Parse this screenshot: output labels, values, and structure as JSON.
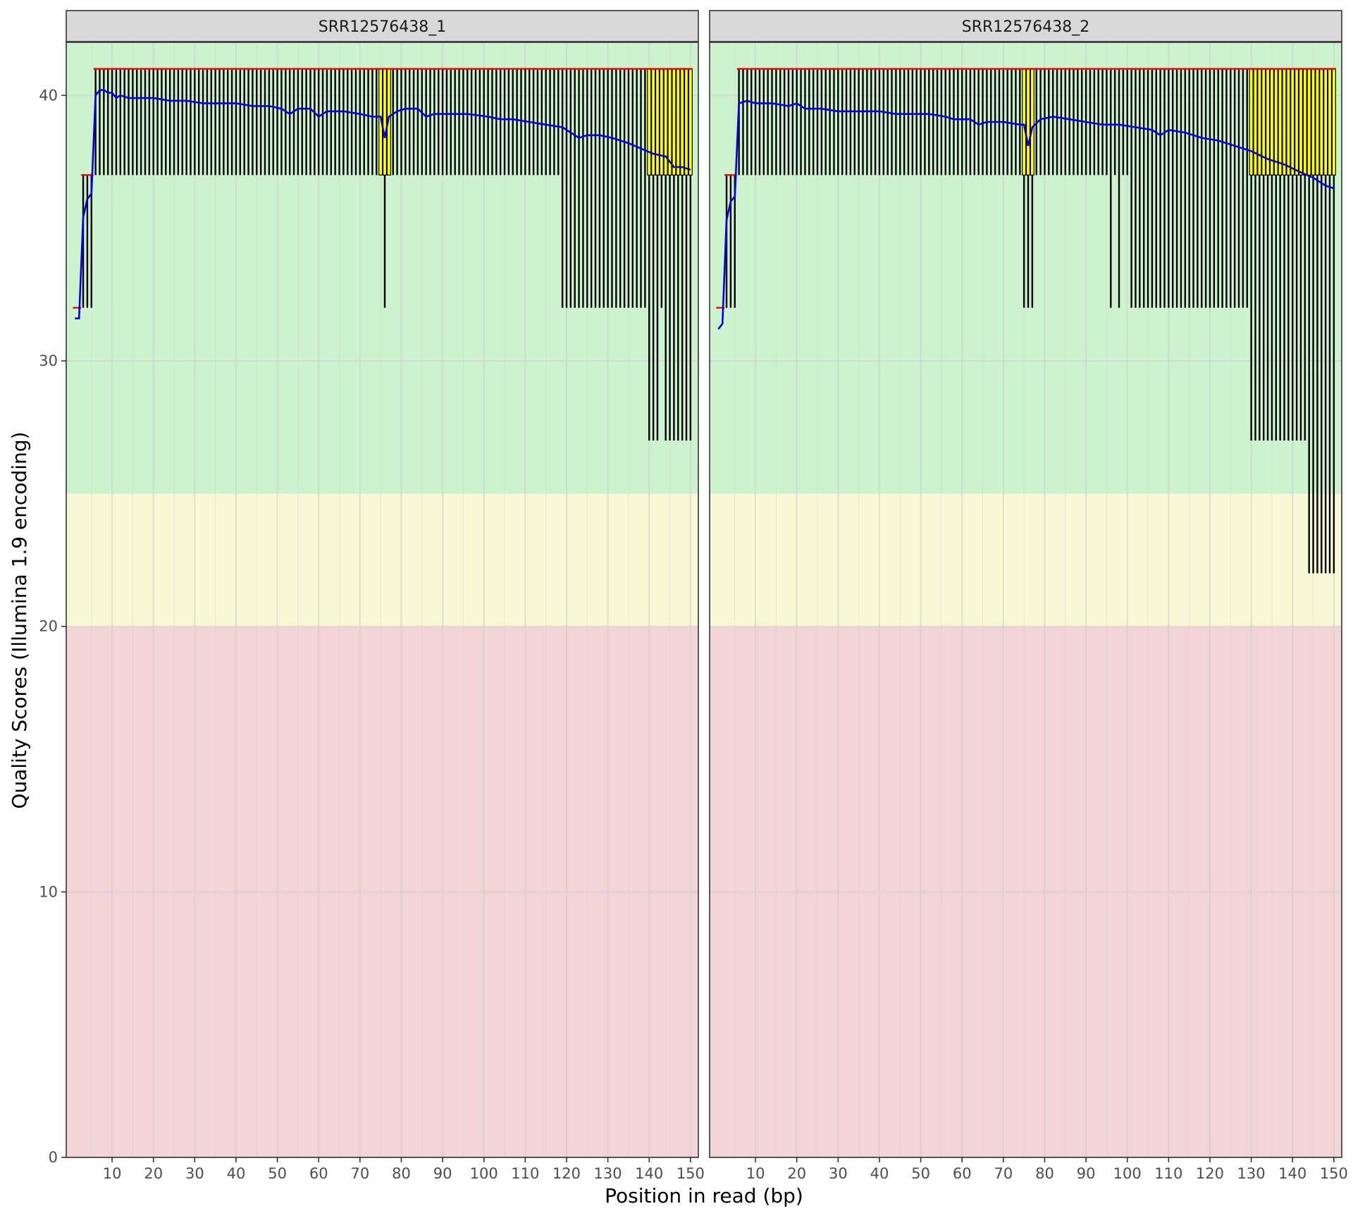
{
  "chart_data": {
    "type": "box",
    "xlabel": "Position in read (bp)",
    "ylabel": "Quality Scores (Illumina 1.9 encoding)",
    "xlim": [
      0,
      151
    ],
    "ylim": [
      0,
      42
    ],
    "x_ticks": [
      10,
      20,
      30,
      40,
      50,
      60,
      70,
      80,
      90,
      100,
      110,
      120,
      130,
      140,
      150
    ],
    "y_ticks": [
      0,
      10,
      20,
      30,
      40
    ],
    "grid": true,
    "legend": "none",
    "quality_bands": [
      {
        "from": 0,
        "to": 20,
        "color": "#f3d4d7"
      },
      {
        "from": 20,
        "to": 25,
        "color": "#f8f8d7"
      },
      {
        "from": 25,
        "to": 42,
        "color": "#ccf3cd"
      }
    ],
    "colors": {
      "mean_line": "#0000ee",
      "median_mark": "#ee0000",
      "box_fill": "#ffff00",
      "whisker": "#000000",
      "panel_border": "#333333",
      "strip_fill": "#d9d9d9",
      "gridline": "#cfcfcf"
    },
    "panels": [
      {
        "strip_label": "SRR12576438_1",
        "mean_points": [
          [
            1,
            31.6
          ],
          [
            2,
            31.6
          ],
          [
            3,
            35.4
          ],
          [
            4,
            36.1
          ],
          [
            5,
            36.3
          ],
          [
            6,
            40.0
          ],
          [
            7,
            40.2
          ],
          [
            8,
            40.2
          ],
          [
            9,
            40.1
          ],
          [
            10,
            40.1
          ],
          [
            11,
            39.9
          ],
          [
            12,
            40.0
          ],
          [
            14,
            39.9
          ],
          [
            16,
            39.9
          ],
          [
            20,
            39.9
          ],
          [
            24,
            39.8
          ],
          [
            28,
            39.8
          ],
          [
            32,
            39.7
          ],
          [
            36,
            39.7
          ],
          [
            40,
            39.7
          ],
          [
            44,
            39.6
          ],
          [
            48,
            39.6
          ],
          [
            51,
            39.5
          ],
          [
            53,
            39.3
          ],
          [
            55,
            39.5
          ],
          [
            58,
            39.5
          ],
          [
            60,
            39.2
          ],
          [
            62,
            39.4
          ],
          [
            66,
            39.4
          ],
          [
            70,
            39.3
          ],
          [
            73,
            39.2
          ],
          [
            75,
            39.2
          ],
          [
            76,
            38.4
          ],
          [
            77,
            39.2
          ],
          [
            79,
            39.4
          ],
          [
            81,
            39.5
          ],
          [
            84,
            39.5
          ],
          [
            86,
            39.2
          ],
          [
            88,
            39.3
          ],
          [
            92,
            39.3
          ],
          [
            96,
            39.3
          ],
          [
            101,
            39.2
          ],
          [
            104,
            39.1
          ],
          [
            107,
            39.1
          ],
          [
            111,
            39.0
          ],
          [
            115,
            38.9
          ],
          [
            119,
            38.8
          ],
          [
            121,
            38.6
          ],
          [
            123,
            38.4
          ],
          [
            125,
            38.5
          ],
          [
            128,
            38.5
          ],
          [
            131,
            38.4
          ],
          [
            135,
            38.2
          ],
          [
            138,
            38.0
          ],
          [
            141,
            37.8
          ],
          [
            144,
            37.7
          ],
          [
            146,
            37.3
          ],
          [
            148,
            37.3
          ],
          [
            150,
            37.2
          ]
        ],
        "boxes": [
          {
            "from": 1,
            "to": 2,
            "low": 32,
            "q1": 32,
            "median": 32,
            "q3": 32,
            "high": 32
          },
          {
            "from": 3,
            "to": 5,
            "low": 32,
            "q1": 37,
            "median": 37,
            "q3": 37,
            "high": 37
          },
          {
            "from": 6,
            "to": 7,
            "low": 37,
            "q1": 41,
            "median": 41,
            "q3": 41,
            "high": 41
          },
          {
            "from": 8,
            "to": 75,
            "low": 37,
            "q1": 41,
            "median": 41,
            "q3": 41,
            "high": 41
          },
          {
            "from": 75,
            "to": 77,
            "low": 37,
            "q1": 37,
            "median": 41,
            "q3": 41,
            "high": 41
          },
          {
            "from": 76,
            "to": 76,
            "low": 32,
            "q1": 37,
            "median": 41,
            "q3": 41,
            "high": 41
          },
          {
            "from": 78,
            "to": 118,
            "low": 37,
            "q1": 41,
            "median": 41,
            "q3": 41,
            "high": 41
          },
          {
            "from": 119,
            "to": 139,
            "low": 32,
            "q1": 41,
            "median": 41,
            "q3": 41,
            "high": 41
          },
          {
            "from": 140,
            "to": 142,
            "low": 27,
            "q1": 37,
            "median": 41,
            "q3": 41,
            "high": 41
          },
          {
            "from": 143,
            "to": 143,
            "low": 32,
            "q1": 37,
            "median": 41,
            "q3": 41,
            "high": 41
          },
          {
            "from": 144,
            "to": 150,
            "low": 27,
            "q1": 37,
            "median": 41,
            "q3": 41,
            "high": 41
          }
        ]
      },
      {
        "strip_label": "SRR12576438_2",
        "mean_points": [
          [
            1,
            31.2
          ],
          [
            2,
            31.4
          ],
          [
            3,
            35.3
          ],
          [
            4,
            36.0
          ],
          [
            5,
            36.2
          ],
          [
            6,
            39.7
          ],
          [
            8,
            39.8
          ],
          [
            10,
            39.7
          ],
          [
            14,
            39.7
          ],
          [
            18,
            39.6
          ],
          [
            20,
            39.7
          ],
          [
            22,
            39.5
          ],
          [
            26,
            39.5
          ],
          [
            30,
            39.4
          ],
          [
            35,
            39.4
          ],
          [
            40,
            39.4
          ],
          [
            44,
            39.3
          ],
          [
            48,
            39.3
          ],
          [
            52,
            39.3
          ],
          [
            56,
            39.2
          ],
          [
            58,
            39.1
          ],
          [
            62,
            39.1
          ],
          [
            64,
            38.9
          ],
          [
            66,
            39.0
          ],
          [
            70,
            39.0
          ],
          [
            74,
            38.9
          ],
          [
            75,
            38.9
          ],
          [
            76,
            38.1
          ],
          [
            77,
            38.8
          ],
          [
            79,
            39.1
          ],
          [
            82,
            39.2
          ],
          [
            86,
            39.1
          ],
          [
            90,
            39.0
          ],
          [
            94,
            38.9
          ],
          [
            98,
            38.9
          ],
          [
            102,
            38.8
          ],
          [
            106,
            38.7
          ],
          [
            108,
            38.5
          ],
          [
            110,
            38.7
          ],
          [
            114,
            38.6
          ],
          [
            118,
            38.4
          ],
          [
            122,
            38.3
          ],
          [
            126,
            38.1
          ],
          [
            130,
            37.9
          ],
          [
            134,
            37.6
          ],
          [
            138,
            37.4
          ],
          [
            142,
            37.1
          ],
          [
            145,
            36.9
          ],
          [
            148,
            36.6
          ],
          [
            150,
            36.5
          ]
        ],
        "boxes": [
          {
            "from": 1,
            "to": 2,
            "low": 32,
            "q1": 32,
            "median": 32,
            "q3": 32,
            "high": 32
          },
          {
            "from": 3,
            "to": 5,
            "low": 32,
            "q1": 37,
            "median": 37,
            "q3": 37,
            "high": 37
          },
          {
            "from": 6,
            "to": 74,
            "low": 37,
            "q1": 41,
            "median": 41,
            "q3": 41,
            "high": 41
          },
          {
            "from": 75,
            "to": 77,
            "low": 32,
            "q1": 37,
            "median": 41,
            "q3": 41,
            "high": 41
          },
          {
            "from": 78,
            "to": 95,
            "low": 37,
            "q1": 41,
            "median": 41,
            "q3": 41,
            "high": 41
          },
          {
            "from": 96,
            "to": 96,
            "low": 32,
            "q1": 41,
            "median": 41,
            "q3": 41,
            "high": 41
          },
          {
            "from": 97,
            "to": 97,
            "low": 37,
            "q1": 41,
            "median": 41,
            "q3": 41,
            "high": 41
          },
          {
            "from": 98,
            "to": 98,
            "low": 32,
            "q1": 41,
            "median": 41,
            "q3": 41,
            "high": 41
          },
          {
            "from": 99,
            "to": 100,
            "low": 37,
            "q1": 41,
            "median": 41,
            "q3": 41,
            "high": 41
          },
          {
            "from": 101,
            "to": 129,
            "low": 32,
            "q1": 41,
            "median": 41,
            "q3": 41,
            "high": 41
          },
          {
            "from": 130,
            "to": 143,
            "low": 27,
            "q1": 37,
            "median": 41,
            "q3": 41,
            "high": 41
          },
          {
            "from": 144,
            "to": 150,
            "low": 22,
            "q1": 37,
            "median": 41,
            "q3": 41,
            "high": 41
          }
        ]
      }
    ]
  }
}
